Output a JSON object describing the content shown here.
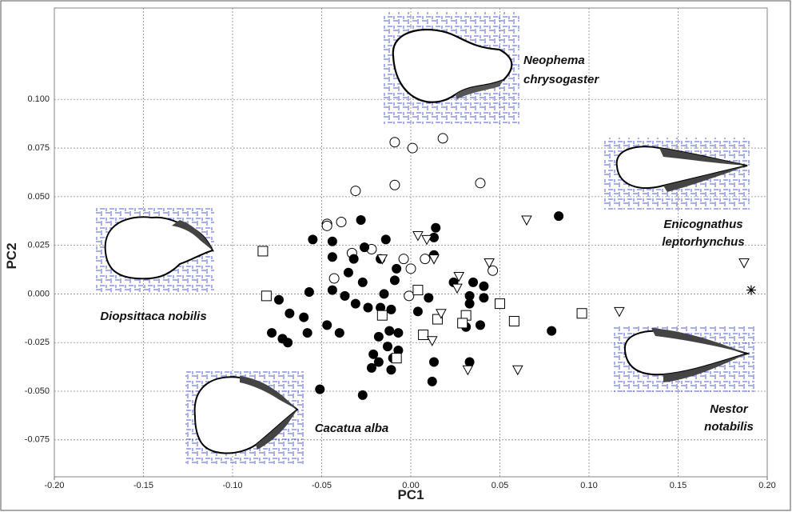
{
  "chart_data": {
    "type": "scatter",
    "x_label": "PC1",
    "y_label": "PC2",
    "xlim": [
      -0.2,
      0.2
    ],
    "ylim": [
      -0.094,
      0.147
    ],
    "xticks": [
      {
        "value": -0.2,
        "label": "-0.20"
      },
      {
        "value": -0.15,
        "label": "-0.15"
      },
      {
        "value": -0.1,
        "label": "-0.10"
      },
      {
        "value": -0.05,
        "label": "-0.05"
      },
      {
        "value": 0,
        "label": "0.00"
      },
      {
        "value": 0.05,
        "label": "0.05"
      },
      {
        "value": 0.1,
        "label": "0.10"
      },
      {
        "value": 0.15,
        "label": "0.15"
      },
      {
        "value": 0.2,
        "label": "0.20"
      }
    ],
    "yticks": [
      -0.075,
      {
        "value": -0.05,
        "label": "-0.050"
      },
      -0.025,
      {
        "value": 0,
        "label": "0.000"
      },
      0.025,
      {
        "value": 0.05,
        "label": "0.050"
      },
      0.075,
      {
        "value": 0.1,
        "label": "0.100"
      }
    ],
    "grid": true,
    "series": [
      {
        "marker": "open-circle",
        "color": "#000000",
        "x": [
          -0.009,
          0.001,
          0.018,
          -0.031,
          -0.009,
          0.039,
          -0.047,
          -0.047,
          -0.039,
          -0.022,
          -0.033,
          -0.043,
          0.0,
          0.008,
          -0.004,
          -0.001,
          0.046
        ],
        "values": [
          0.078,
          0.075,
          0.08,
          0.053,
          0.056,
          0.057,
          0.036,
          0.035,
          0.037,
          0.023,
          0.021,
          0.008,
          0.013,
          0.018,
          0.018,
          -0.001,
          0.012
        ]
      },
      {
        "marker": "filled-circle",
        "color": "#000000",
        "x": [
          -0.028,
          0.014,
          0.083,
          -0.055,
          -0.044,
          -0.026,
          -0.014,
          0.013,
          -0.044,
          -0.032,
          -0.017,
          0.013,
          -0.035,
          -0.009,
          0.024,
          -0.027,
          -0.008,
          -0.057,
          -0.044,
          -0.037,
          -0.031,
          -0.024,
          -0.017,
          -0.011,
          -0.015,
          0.035,
          0.041,
          0.033,
          0.041,
          -0.074,
          -0.068,
          0.004,
          0.01,
          -0.078,
          -0.06,
          -0.058,
          -0.072,
          -0.069,
          -0.047,
          -0.04,
          -0.012,
          -0.007,
          -0.018,
          -0.013,
          -0.007,
          -0.021,
          -0.01,
          -0.018,
          0.033,
          0.013,
          -0.022,
          -0.011,
          0.039,
          0.079,
          0.031,
          0.012,
          -0.051,
          -0.027,
          0.033
        ],
        "values": [
          0.038,
          0.034,
          0.04,
          0.028,
          0.027,
          0.024,
          0.028,
          0.029,
          0.019,
          0.018,
          0.018,
          0.02,
          0.011,
          0.007,
          0.006,
          0.006,
          0.013,
          0.001,
          0.002,
          -0.001,
          -0.005,
          -0.007,
          -0.007,
          -0.008,
          0.0,
          0.006,
          0.004,
          -0.001,
          -0.002,
          -0.003,
          -0.01,
          -0.009,
          -0.002,
          -0.02,
          -0.012,
          -0.02,
          -0.023,
          -0.025,
          -0.016,
          -0.02,
          -0.019,
          -0.02,
          -0.022,
          -0.027,
          -0.029,
          -0.031,
          -0.033,
          -0.035,
          -0.035,
          -0.035,
          -0.038,
          -0.039,
          -0.016,
          -0.019,
          -0.017,
          -0.045,
          -0.049,
          -0.052,
          -0.005
        ]
      },
      {
        "marker": "open-square",
        "color": "#000000",
        "x": [
          -0.083,
          -0.081,
          0.004,
          -0.016,
          0.031,
          0.05,
          0.058,
          0.096,
          0.015,
          0.029,
          0.007,
          -0.008
        ],
        "values": [
          0.022,
          -0.001,
          0.002,
          -0.011,
          -0.011,
          -0.005,
          -0.014,
          -0.01,
          -0.013,
          -0.015,
          -0.021,
          -0.033
        ]
      },
      {
        "marker": "open-triangle-down",
        "color": "#000000",
        "x": [
          0.004,
          0.009,
          -0.016,
          0.013,
          0.044,
          0.065,
          0.027,
          0.026,
          0.017,
          0.012,
          0.032,
          0.06,
          0.117,
          0.187
        ],
        "values": [
          0.03,
          0.028,
          0.018,
          0.018,
          0.016,
          0.038,
          0.009,
          0.003,
          -0.01,
          -0.024,
          -0.039,
          -0.039,
          -0.009,
          0.016
        ]
      },
      {
        "marker": "asterisk",
        "color": "#000000",
        "x": [
          0.191
        ],
        "values": [
          0.002
        ]
      }
    ],
    "annotations": [
      {
        "lines": [
          "Neophema",
          "chrysogaster"
        ]
      },
      {
        "lines": [
          "Enicognathus",
          "leptorhynchus"
        ]
      },
      {
        "lines": [
          "Diopsittaca nobilis"
        ]
      },
      {
        "lines": [
          "Cacatua alba"
        ]
      },
      {
        "lines": [
          "Nestor",
          "notabilis"
        ]
      }
    ]
  }
}
